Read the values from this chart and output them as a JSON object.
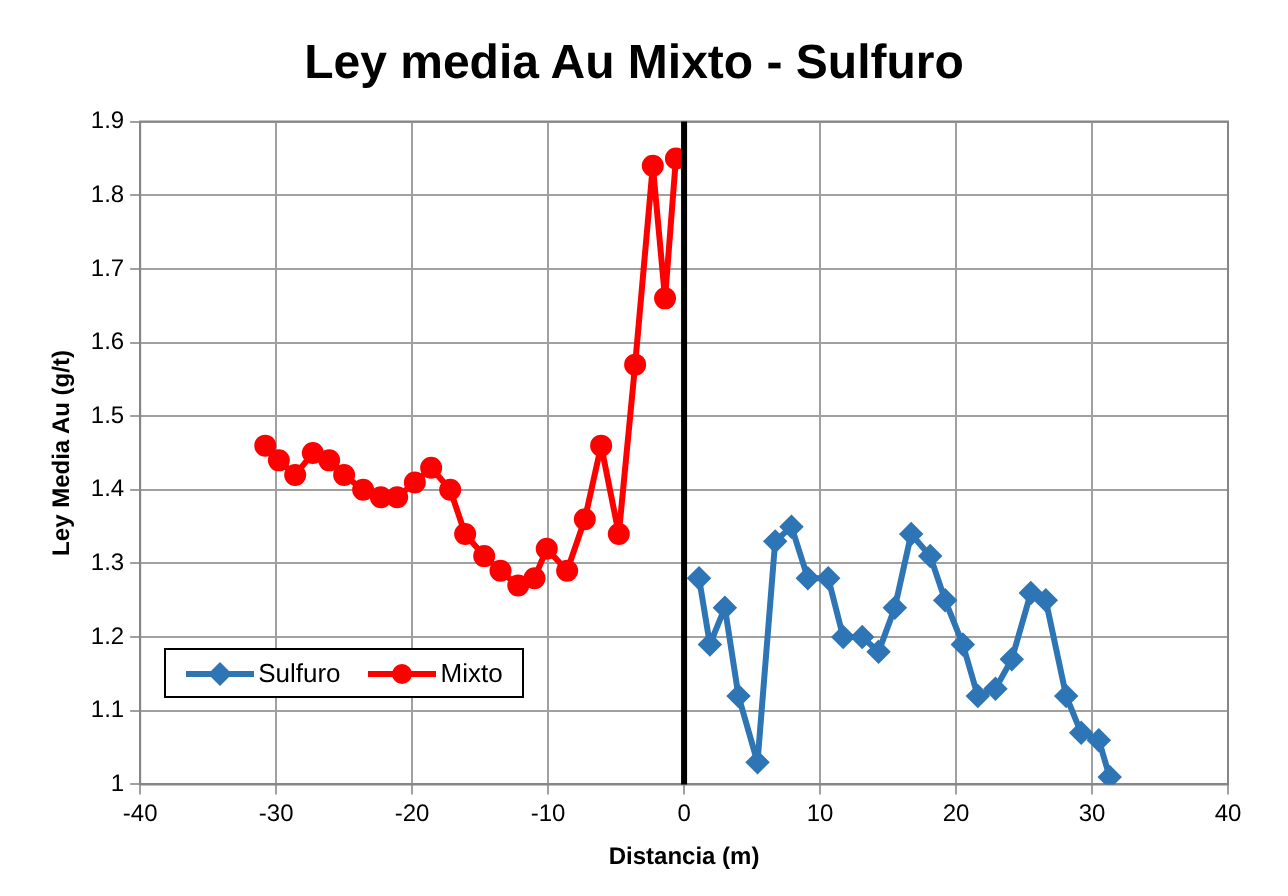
{
  "chart_data": {
    "type": "line",
    "title": "Ley media Au Mixto - Sulfuro",
    "xlabel": "Distancia (m)",
    "ylabel": "Ley Media Au (g/t)",
    "xlim": [
      -40,
      40
    ],
    "xticks": [
      -40,
      -30,
      -20,
      -10,
      0,
      10,
      20,
      30,
      40
    ],
    "ylim": [
      1,
      1.9
    ],
    "yticks": [
      1,
      1.1,
      1.2,
      1.3,
      1.4,
      1.5,
      1.6,
      1.7,
      1.8,
      1.9
    ],
    "grid": true,
    "legend": "bottom left",
    "line_style": "solid",
    "ref_lines": [
      {
        "axis": "x",
        "value": 0,
        "color": "#000000"
      }
    ],
    "series": [
      {
        "name": "Sulfuro",
        "color": "#2e75b6",
        "marker": "diamond",
        "x": [
          1.1,
          1.9,
          3.0,
          4.0,
          5.4,
          6.7,
          7.9,
          9.1,
          10.6,
          11.7,
          13.1,
          14.3,
          15.5,
          16.7,
          18.1,
          19.2,
          20.5,
          21.6,
          22.9,
          24.1,
          25.5,
          26.6,
          28.1,
          29.2,
          30.5,
          31.3
        ],
        "values": [
          1.28,
          1.19,
          1.24,
          1.12,
          1.03,
          1.33,
          1.35,
          1.28,
          1.28,
          1.2,
          1.2,
          1.18,
          1.24,
          1.34,
          1.31,
          1.25,
          1.19,
          1.12,
          1.13,
          1.17,
          1.26,
          1.25,
          1.12,
          1.07,
          1.06,
          1.01
        ]
      },
      {
        "name": "Mixto",
        "color": "#ff0000",
        "marker": "circle",
        "x": [
          -30.8,
          -29.8,
          -28.6,
          -27.3,
          -26.1,
          -25,
          -23.6,
          -22.3,
          -21.1,
          -19.8,
          -18.6,
          -17.2,
          -16.1,
          -14.7,
          -13.5,
          -12.2,
          -11,
          -10.1,
          -8.6,
          -7.3,
          -6.1,
          -4.8,
          -3.6,
          -2.3,
          -1.4,
          -0.6
        ],
        "values": [
          1.46,
          1.44,
          1.42,
          1.45,
          1.44,
          1.42,
          1.4,
          1.39,
          1.39,
          1.41,
          1.43,
          1.4,
          1.34,
          1.31,
          1.29,
          1.27,
          1.28,
          1.32,
          1.29,
          1.36,
          1.46,
          1.34,
          1.57,
          1.84,
          1.66,
          1.85
        ]
      }
    ]
  }
}
